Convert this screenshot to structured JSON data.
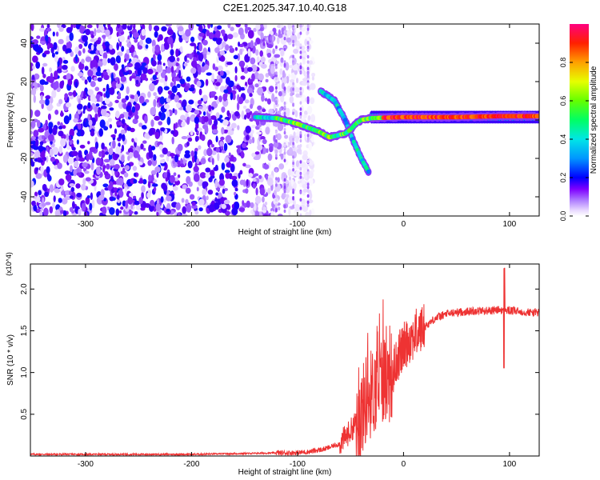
{
  "title": "C2E1.2025.347.10.40.G18",
  "chart_data": [
    {
      "type": "heatmap",
      "xlabel": "Height of straight line (km)",
      "ylabel": "Frequency (Hz)",
      "xlim": [
        -352,
        128
      ],
      "ylim": [
        -50,
        50
      ],
      "x_ticks": [
        -300,
        -200,
        -100,
        0,
        100
      ],
      "x_tick_labels": [
        "-300",
        "-200",
        "-100",
        "0",
        "100"
      ],
      "y_ticks": [
        -40,
        -20,
        0,
        20,
        40
      ],
      "y_tick_labels": [
        "-40",
        "-20",
        "0",
        "20",
        "40"
      ],
      "colorbar": {
        "label": "Normalized spectral amplitude",
        "range": [
          0,
          1
        ],
        "ticks": [
          0.0,
          0.2,
          0.4,
          0.6,
          0.8
        ],
        "tick_labels": [
          "0.0",
          "0.2",
          "0.4",
          "0.6",
          "0.8"
        ],
        "colormap": [
          "#ffffff",
          "#d8b8ff",
          "#7f00ff",
          "#0000ff",
          "#00c8ff",
          "#00ff80",
          "#80ff00",
          "#ffff00",
          "#ff8000",
          "#ff0000",
          "#ff0080"
        ]
      },
      "features": [
        {
          "name": "noise",
          "x_range": [
            -352,
            -85
          ],
          "y_range": [
            -50,
            50
          ],
          "amplitude": 0.2
        },
        {
          "name": "main-trace",
          "points": [
            [
              -140,
              1.5
            ],
            [
              -120,
              1
            ],
            [
              -100,
              -2
            ],
            [
              -80,
              -6
            ],
            [
              -70,
              -9
            ],
            [
              -62,
              -8
            ],
            [
              -55,
              -7
            ],
            [
              -50,
              -5
            ],
            [
              -45,
              -2
            ],
            [
              -40,
              0
            ],
            [
              -30,
              1
            ],
            [
              0,
              1.5
            ],
            [
              50,
              1.5
            ],
            [
              90,
              2
            ],
            [
              128,
              2
            ]
          ],
          "amplitude": 0.6
        },
        {
          "name": "branch",
          "points": [
            [
              -78,
              15
            ],
            [
              -65,
              10
            ],
            [
              -55,
              0
            ],
            [
              -48,
              -10
            ],
            [
              -40,
              -20
            ],
            [
              -32,
              -28
            ]
          ],
          "amplitude": 0.45
        }
      ]
    },
    {
      "type": "line",
      "xlabel": "Height of straight line (km)",
      "ylabel": "SNR (10 * v/v)",
      "y_multiplier": "(x10^4)",
      "xlim": [
        -352,
        128
      ],
      "ylim": [
        0,
        2.3
      ],
      "x_ticks": [
        -300,
        -200,
        -100,
        0,
        100
      ],
      "x_tick_labels": [
        "-300",
        "-200",
        "-100",
        "0",
        "100"
      ],
      "y_ticks": [
        0.5,
        1.0,
        1.5,
        2.0
      ],
      "y_tick_labels": [
        "0.5",
        "1.0",
        "1.5",
        "2.0"
      ],
      "color": "#ee3333",
      "x": [
        -352,
        -300,
        -250,
        -200,
        -150,
        -100,
        -90,
        -75,
        -60,
        -50,
        -45,
        -40,
        -35,
        -30,
        -25,
        -20,
        -15,
        -10,
        -5,
        0,
        5,
        10,
        15,
        20,
        25,
        30,
        40,
        50,
        60,
        70,
        80,
        90,
        100,
        110,
        120,
        128
      ],
      "values": [
        0.02,
        0.02,
        0.02,
        0.02,
        0.03,
        0.04,
        0.05,
        0.08,
        0.15,
        0.3,
        0.4,
        0.5,
        0.7,
        0.75,
        0.85,
        0.95,
        0.9,
        1.0,
        1.2,
        1.3,
        1.4,
        1.45,
        1.5,
        1.55,
        1.6,
        1.65,
        1.7,
        1.72,
        1.73,
        1.74,
        1.74,
        1.75,
        1.74,
        1.73,
        1.72,
        1.72
      ]
    }
  ]
}
